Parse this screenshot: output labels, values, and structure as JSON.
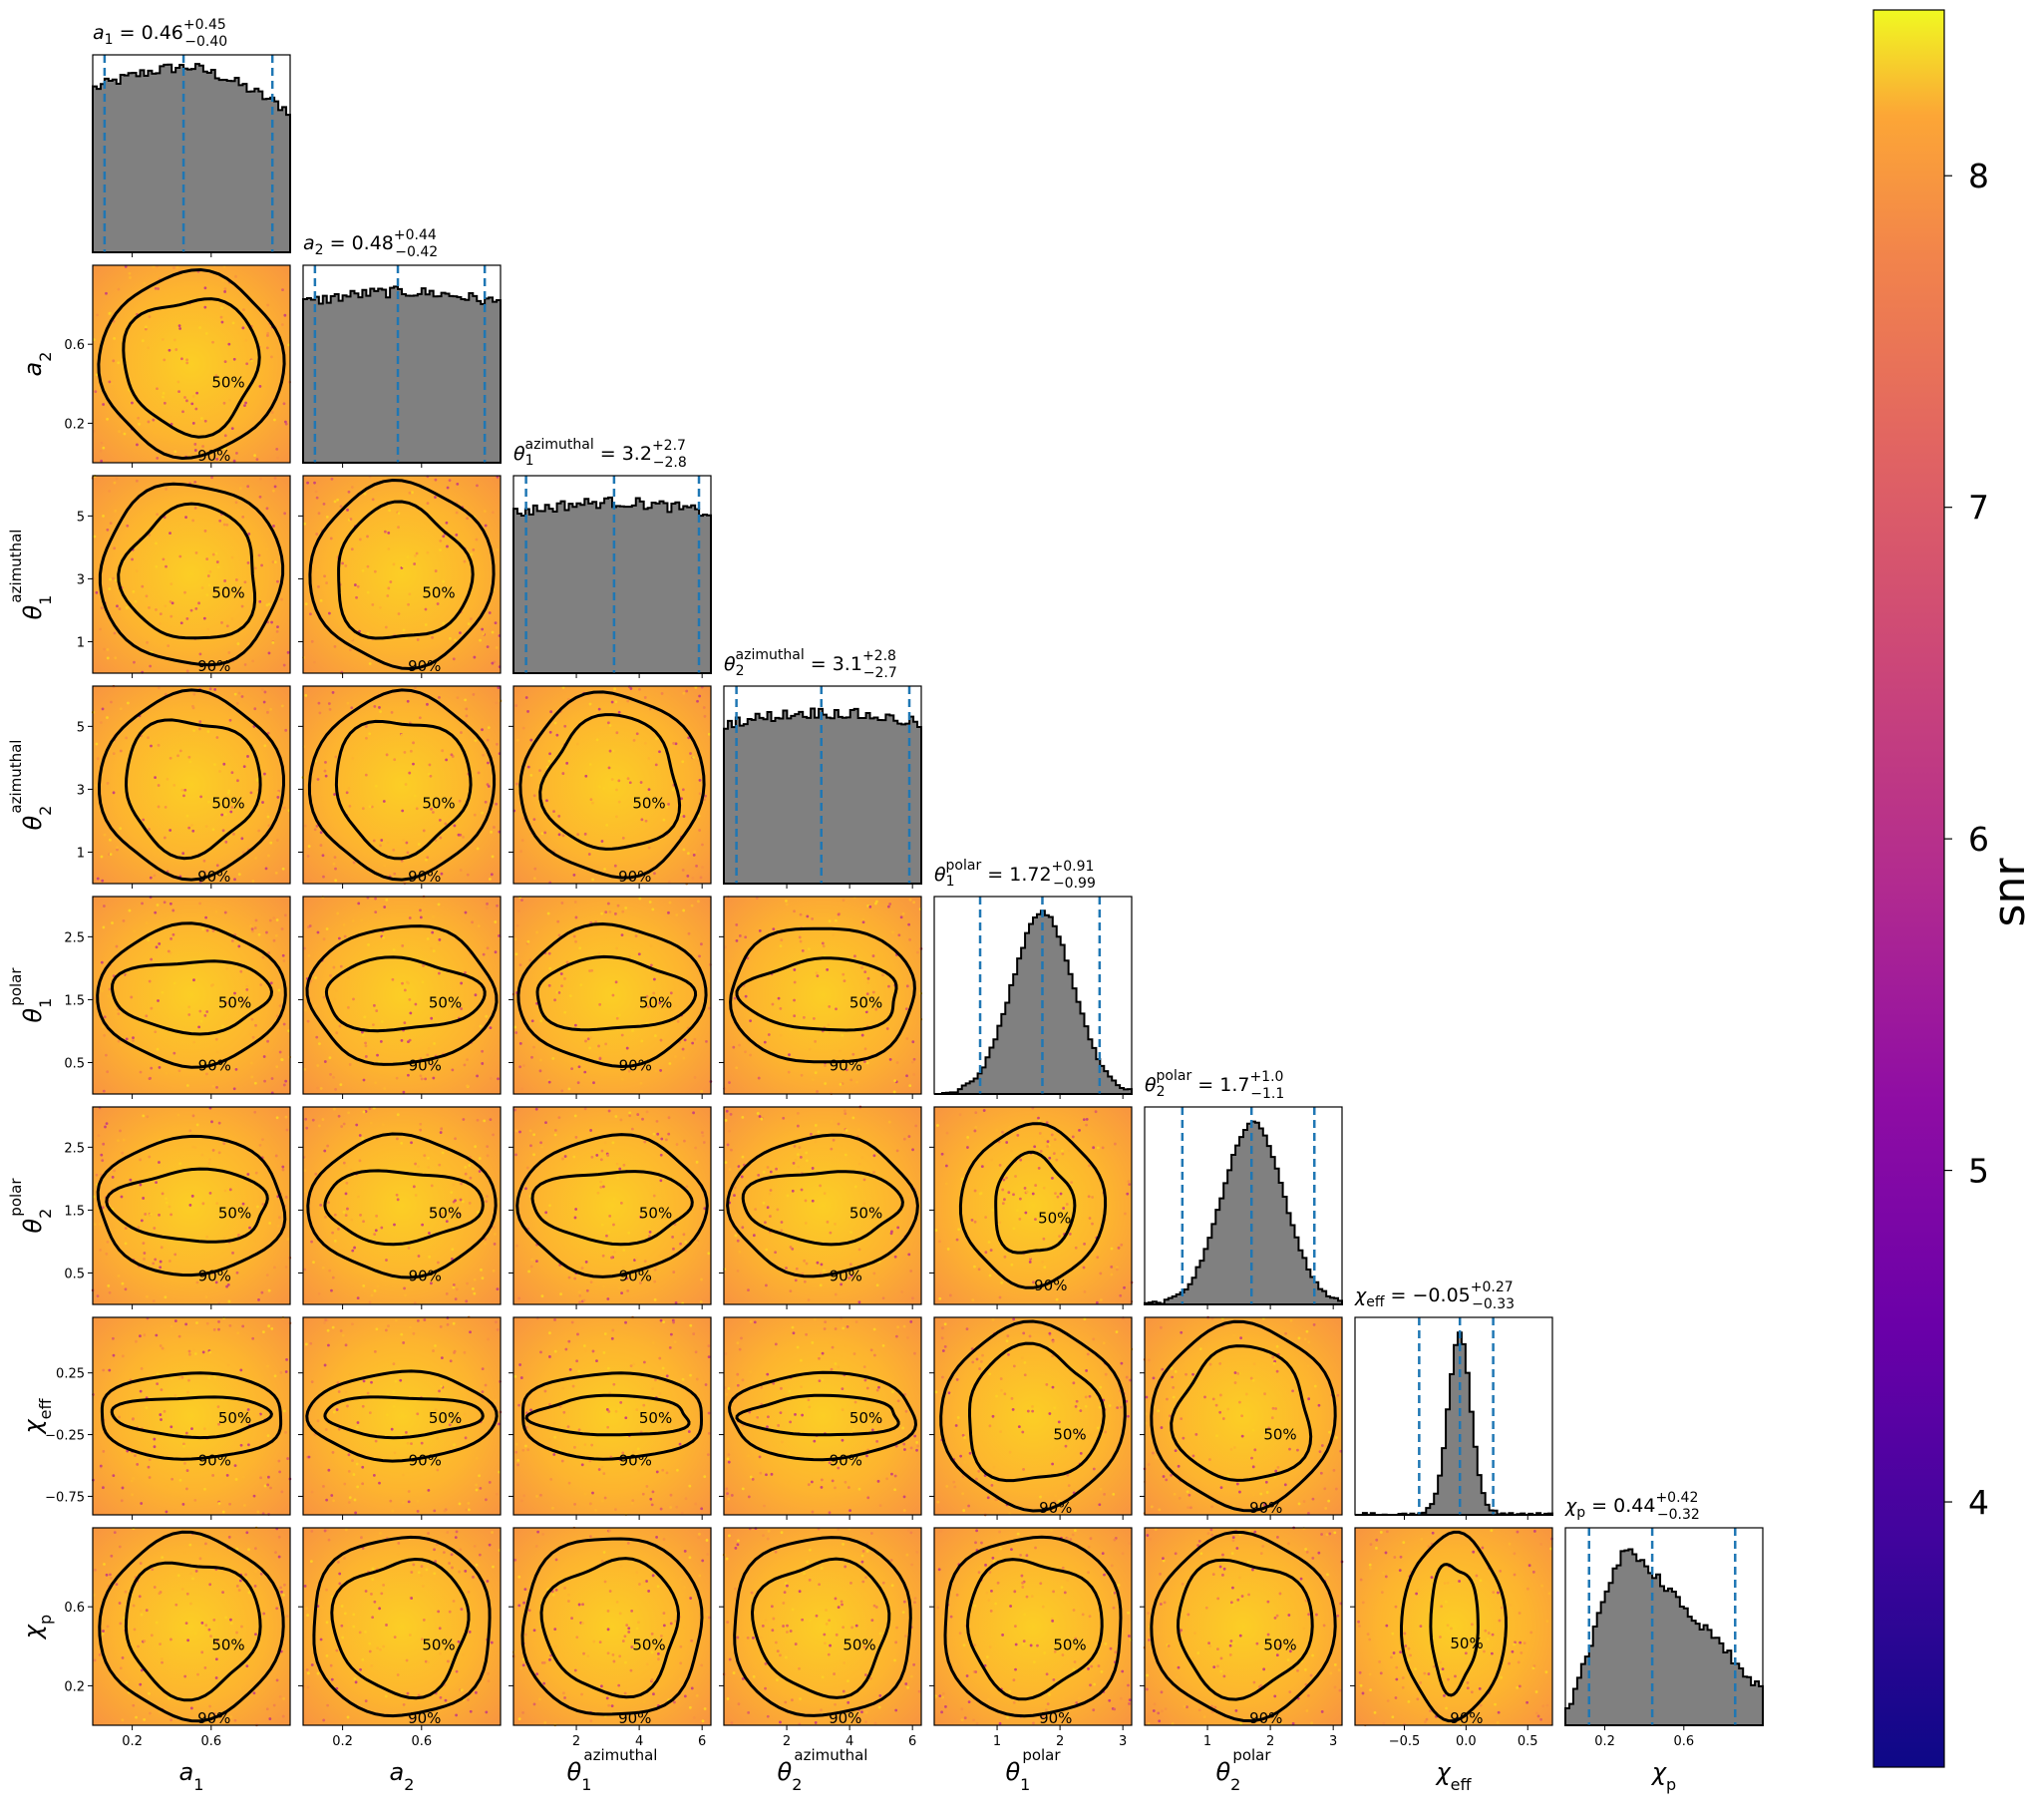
{
  "chart_data": {
    "type": "corner",
    "parameters": [
      {
        "key": "a_1",
        "label": "a",
        "sub": "1",
        "sup": "",
        "range": [
          0,
          1
        ],
        "ticks": [
          0.2,
          0.6
        ],
        "tick_labels": [
          "0.2",
          "0.6"
        ],
        "median": 0.46,
        "plus": "0.45",
        "minus": "0.40",
        "median_text": "0.46",
        "quantiles": [
          0.06,
          0.46,
          0.91
        ],
        "hist_shape": "decreasing"
      },
      {
        "key": "a_2",
        "label": "a",
        "sub": "2",
        "sup": "",
        "range": [
          0,
          1
        ],
        "ticks": [
          0.2,
          0.6
        ],
        "tick_labels": [
          "0.2",
          "0.6"
        ],
        "median": 0.48,
        "plus": "0.44",
        "minus": "0.42",
        "median_text": "0.48",
        "quantiles": [
          0.06,
          0.48,
          0.92
        ],
        "hist_shape": "flat"
      },
      {
        "key": "theta_1_azimuthal",
        "label": "θ",
        "sub": "1",
        "sup": "azimuthal",
        "range": [
          0,
          6.28
        ],
        "ticks": [
          2,
          4,
          6
        ],
        "tick_labels": [
          "2",
          "4",
          "6"
        ],
        "ticks_y": [
          1,
          3,
          5
        ],
        "tick_labels_y": [
          "1",
          "3",
          "5"
        ],
        "median": 3.2,
        "plus": "2.7",
        "minus": "2.8",
        "median_text": "3.2",
        "quantiles": [
          0.4,
          3.2,
          5.9
        ],
        "hist_shape": "flat"
      },
      {
        "key": "theta_2_azimuthal",
        "label": "θ",
        "sub": "2",
        "sup": "azimuthal",
        "range": [
          0,
          6.28
        ],
        "ticks": [
          2,
          4,
          6
        ],
        "tick_labels": [
          "2",
          "4",
          "6"
        ],
        "ticks_y": [
          1,
          3,
          5
        ],
        "tick_labels_y": [
          "1",
          "3",
          "5"
        ],
        "median": 3.1,
        "plus": "2.8",
        "minus": "2.7",
        "median_text": "3.1",
        "quantiles": [
          0.4,
          3.1,
          5.9
        ],
        "hist_shape": "flat"
      },
      {
        "key": "theta_1_polar",
        "label": "θ",
        "sub": "1",
        "sup": "polar",
        "range": [
          0,
          3.14
        ],
        "ticks": [
          1,
          2,
          3
        ],
        "tick_labels": [
          "1",
          "2",
          "3"
        ],
        "ticks_y": [
          0.5,
          1.5,
          2.5
        ],
        "tick_labels_y": [
          "0.5",
          "1.5",
          "2.5"
        ],
        "median": 1.72,
        "plus": "0.91",
        "minus": "0.99",
        "median_text": "1.72",
        "quantiles": [
          0.73,
          1.72,
          2.63
        ],
        "hist_shape": "bell"
      },
      {
        "key": "theta_2_polar",
        "label": "θ",
        "sub": "2",
        "sup": "polar",
        "range": [
          0,
          3.14
        ],
        "ticks": [
          1,
          2,
          3
        ],
        "tick_labels": [
          "1",
          "2",
          "3"
        ],
        "ticks_y": [
          0.5,
          1.5,
          2.5
        ],
        "tick_labels_y": [
          "0.5",
          "1.5",
          "2.5"
        ],
        "median": 1.7,
        "plus": "1.0",
        "minus": "1.1",
        "median_text": "1.7",
        "quantiles": [
          0.6,
          1.7,
          2.7
        ],
        "hist_shape": "bell"
      },
      {
        "key": "chi_eff",
        "label": "χ",
        "sub": "eff",
        "sup": "",
        "range": [
          -0.9,
          0.7
        ],
        "ticks": [
          -0.5,
          0.0,
          0.5
        ],
        "tick_labels": [
          "−0.5",
          "0.0",
          "0.5"
        ],
        "ticks_y": [
          -0.75,
          -0.25,
          0.25
        ],
        "tick_labels_y": [
          "−0.75",
          "−0.25",
          "0.25"
        ],
        "median": -0.05,
        "plus": "0.27",
        "minus": "0.33",
        "median_text": "−0.05",
        "quantiles": [
          -0.38,
          -0.05,
          0.22
        ],
        "hist_shape": "peak"
      },
      {
        "key": "chi_p",
        "label": "χ",
        "sub": "p",
        "sup": "",
        "range": [
          0,
          1
        ],
        "ticks": [
          0.2,
          0.6
        ],
        "tick_labels": [
          "0.2",
          "0.6"
        ],
        "median": 0.44,
        "plus": "0.42",
        "minus": "0.32",
        "median_text": "0.44",
        "quantiles": [
          0.12,
          0.44,
          0.86
        ],
        "hist_shape": "skewed"
      }
    ],
    "contour_levels": [
      "50%",
      "90%"
    ],
    "colorbar": {
      "label": "snr",
      "range": [
        3.2,
        8.5
      ],
      "ticks": [
        4,
        5,
        6,
        7,
        8
      ],
      "tick_labels": [
        "4",
        "5",
        "6",
        "7",
        "8"
      ],
      "colormap": "plasma"
    }
  },
  "colors": {
    "hist_fill": "#808080",
    "quantile_line": "#1f77b4",
    "contour": "#000000",
    "scatter_base": "#f5a623"
  }
}
